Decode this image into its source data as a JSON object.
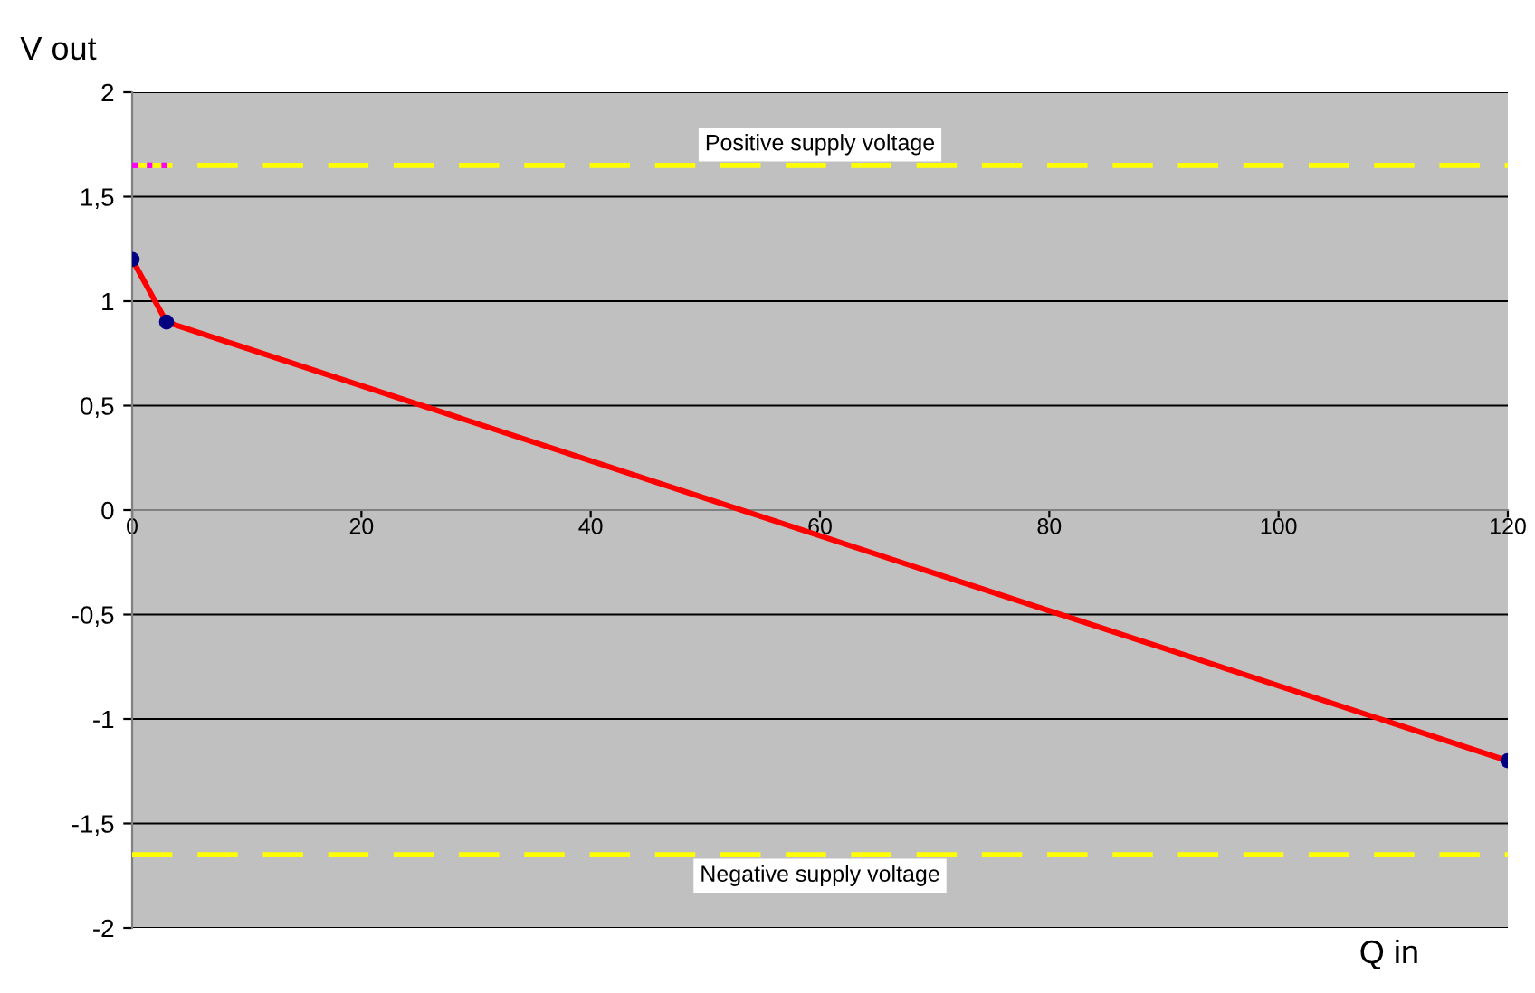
{
  "chart_data": {
    "type": "line",
    "xlabel": "Q in",
    "ylabel": "V out",
    "series": [
      {
        "x": [
          0,
          3,
          120
        ],
        "values": [
          1.2,
          0.9,
          -1.2
        ],
        "color": "#ff0000",
        "marker": "circle"
      },
      {
        "x": [
          0,
          3
        ],
        "values": [
          1.65,
          1.65
        ],
        "color": "#ff00ff",
        "line_style": "dotted",
        "marker": "none"
      }
    ],
    "xlim": [
      0,
      120
    ],
    "xticks": [
      0,
      20,
      40,
      60,
      80,
      100,
      120
    ],
    "ylim": [
      -2,
      2
    ],
    "yticks": [
      {
        "value": -2,
        "label": "-2"
      },
      {
        "value": -1.5,
        "label": "-1,5"
      },
      {
        "value": -1,
        "label": "-1"
      },
      {
        "value": -0.5,
        "label": "-0,5"
      },
      {
        "value": 0,
        "label": "0"
      },
      {
        "value": 0.5,
        "label": "0,5"
      },
      {
        "value": 1,
        "label": "1"
      },
      {
        "value": 1.5,
        "label": "1,5"
      },
      {
        "value": 2,
        "label": "2"
      }
    ],
    "grid": "y",
    "legend": false,
    "ref_lines": [
      {
        "axis": "y",
        "value": 1.65,
        "label": "Positive supply voltage",
        "color": "#ffff00",
        "line_style": "dashed"
      },
      {
        "axis": "y",
        "value": -1.65,
        "label": "Negative supply voltage",
        "color": "#ffff00",
        "line_style": "dashed"
      }
    ]
  }
}
